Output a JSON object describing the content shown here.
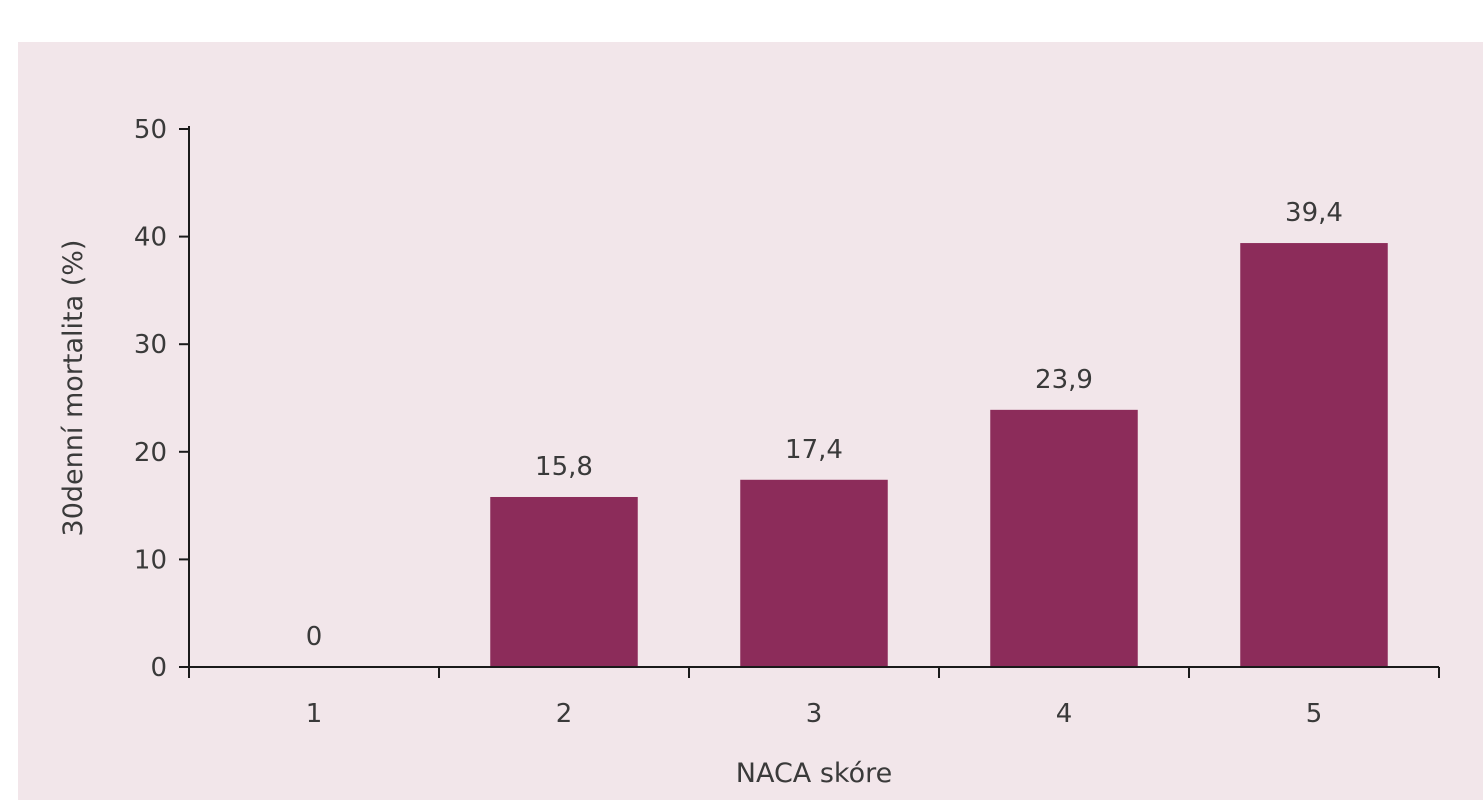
{
  "colors": {
    "panel_background": "#f2e6ea",
    "bar_fill": "#8c2c5a",
    "axis": "#1a1a1a",
    "text": "#3a3a3a"
  },
  "chart_data": {
    "type": "bar",
    "categories": [
      "1",
      "2",
      "3",
      "4",
      "5"
    ],
    "values": [
      0,
      15.8,
      17.4,
      23.9,
      39.4
    ],
    "data_labels": [
      "0",
      "15,8",
      "17,4",
      "23,9",
      "39,4"
    ],
    "yticks": [
      "0",
      "10",
      "20",
      "30",
      "40",
      "50"
    ],
    "xlabel": "NACA skóre",
    "ylabel": "30denní mortalita (%)",
    "ylim": [
      0,
      50
    ],
    "grid": false,
    "legend": "none"
  }
}
